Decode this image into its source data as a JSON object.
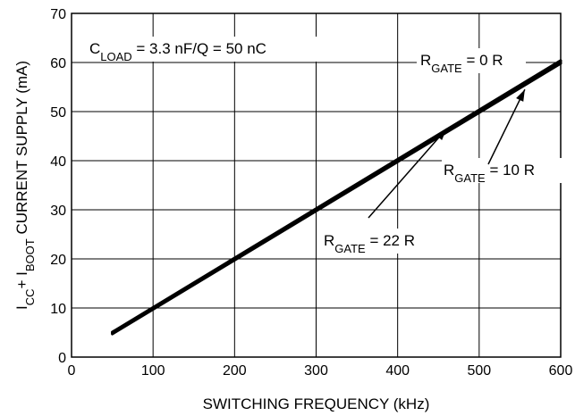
{
  "chart_data": {
    "type": "line",
    "xlabel": "SWITCHING FREQUENCY (kHz)",
    "ylabel": {
      "parts": [
        {
          "t": "I",
          "sub": false
        },
        {
          "t": "CC",
          "sub": true
        },
        {
          "t": "+ I",
          "sub": false
        },
        {
          "t": "BOOT",
          "sub": true
        },
        {
          "t": " CURRENT SUPPLY (mA)",
          "sub": false
        }
      ]
    },
    "xlim": [
      0,
      600
    ],
    "ylim": [
      0,
      70
    ],
    "x_ticks": [
      0,
      100,
      200,
      300,
      400,
      500,
      600
    ],
    "y_ticks": [
      0,
      10,
      20,
      30,
      40,
      50,
      60,
      70
    ],
    "grid": true,
    "series": [
      {
        "name": "RGATE = 0 R",
        "x": [
          50,
          600
        ],
        "y": [
          5.1,
          60.4
        ]
      },
      {
        "name": "RGATE = 10 R",
        "x": [
          50,
          600
        ],
        "y": [
          4.9,
          60.1
        ]
      },
      {
        "name": "RGATE = 22 R",
        "x": [
          50,
          600
        ],
        "y": [
          4.7,
          59.8
        ]
      }
    ],
    "annotations": [
      {
        "id": "cond",
        "parts": [
          {
            "t": "C",
            "sub": false
          },
          {
            "t": "LOAD",
            "sub": true
          },
          {
            "t": " = 3.3 nF/Q = 50 nC",
            "sub": false
          }
        ]
      },
      {
        "id": "r0",
        "parts": [
          {
            "t": "R",
            "sub": false
          },
          {
            "t": "GATE",
            "sub": true
          },
          {
            "t": " = 0 R",
            "sub": false
          }
        ]
      },
      {
        "id": "r10",
        "parts": [
          {
            "t": "R",
            "sub": false
          },
          {
            "t": "GATE",
            "sub": true
          },
          {
            "t": " = 10 R",
            "sub": false
          }
        ]
      },
      {
        "id": "r22",
        "parts": [
          {
            "t": "R",
            "sub": false
          },
          {
            "t": "GATE",
            "sub": true
          },
          {
            "t": " = 22 R",
            "sub": false
          }
        ]
      }
    ]
  }
}
